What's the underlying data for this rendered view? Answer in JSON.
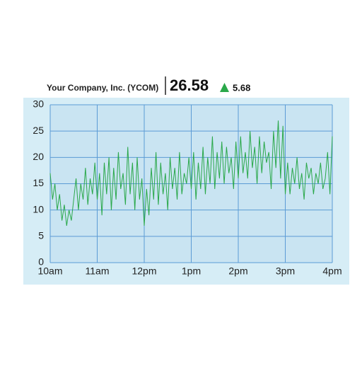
{
  "header": {
    "company": "Your Company, Inc. (YCOM)",
    "price": "26.58",
    "change": "5.68"
  },
  "chart_data": {
    "type": "line",
    "color": "#2aa84a",
    "grid": true,
    "x": [
      10,
      10.05,
      10.1,
      10.15,
      10.2,
      10.25,
      10.3,
      10.35,
      10.4,
      10.45,
      10.5,
      10.55,
      10.6,
      10.65,
      10.7,
      10.75,
      10.8,
      10.85,
      10.9,
      10.95,
      11,
      11.05,
      11.1,
      11.15,
      11.2,
      11.25,
      11.3,
      11.35,
      11.4,
      11.45,
      11.5,
      11.55,
      11.6,
      11.65,
      11.7,
      11.75,
      11.8,
      11.85,
      11.9,
      11.95,
      12,
      12.05,
      12.1,
      12.15,
      12.2,
      12.25,
      12.3,
      12.35,
      12.4,
      12.45,
      12.5,
      12.55,
      12.6,
      12.65,
      12.7,
      12.75,
      12.8,
      12.85,
      12.9,
      12.95,
      13,
      13.05,
      13.1,
      13.15,
      13.2,
      13.25,
      13.3,
      13.35,
      13.4,
      13.45,
      13.5,
      13.55,
      13.6,
      13.65,
      13.7,
      13.75,
      13.8,
      13.85,
      13.9,
      13.95,
      14,
      14.05,
      14.1,
      14.15,
      14.2,
      14.25,
      14.3,
      14.35,
      14.4,
      14.45,
      14.5,
      14.55,
      14.6,
      14.65,
      14.7,
      14.75,
      14.8,
      14.85,
      14.9,
      14.95,
      15,
      15.05,
      15.1,
      15.15,
      15.2,
      15.25,
      15.3,
      15.35,
      15.4,
      15.45,
      15.5,
      15.55,
      15.6,
      15.65,
      15.7,
      15.75,
      15.8,
      15.85,
      15.9,
      15.95,
      16
    ],
    "values": [
      17,
      12,
      15,
      10,
      13,
      8,
      11,
      7,
      10,
      8,
      12,
      16,
      10,
      15,
      12,
      18,
      11,
      16,
      13,
      19,
      12,
      17,
      9,
      19,
      13,
      20,
      10,
      18,
      12,
      21,
      14,
      17,
      11,
      22,
      13,
      19,
      10,
      20,
      12,
      16,
      7,
      14,
      9,
      18,
      12,
      21,
      11,
      19,
      13,
      17,
      10,
      20,
      14,
      18,
      12,
      21,
      13,
      17,
      15,
      20,
      14,
      21,
      12,
      19,
      14,
      22,
      13,
      20,
      15,
      24,
      14,
      21,
      16,
      23,
      15,
      22,
      17,
      20,
      14,
      23,
      16,
      24,
      17,
      21,
      16,
      25,
      18,
      22,
      15,
      24,
      17,
      23,
      19,
      21,
      14,
      25,
      18,
      27,
      16,
      26,
      13,
      19,
      13,
      18,
      15,
      20,
      14,
      17,
      12,
      19,
      16,
      18,
      13,
      17,
      15,
      19,
      14,
      16,
      21,
      13,
      24
    ],
    "xlim": [
      10,
      16
    ],
    "xticks": [
      {
        "value": 10,
        "label": "10am"
      },
      {
        "value": 11,
        "label": "11am"
      },
      {
        "value": 12,
        "label": "12pm"
      },
      {
        "value": 13,
        "label": "1pm"
      },
      {
        "value": 14,
        "label": "2pm"
      },
      {
        "value": 15,
        "label": "3pm"
      },
      {
        "value": 16,
        "label": "4pm"
      }
    ],
    "ylim": [
      0,
      30
    ],
    "yticks": [
      0,
      5,
      10,
      15,
      20,
      25,
      30
    ]
  }
}
